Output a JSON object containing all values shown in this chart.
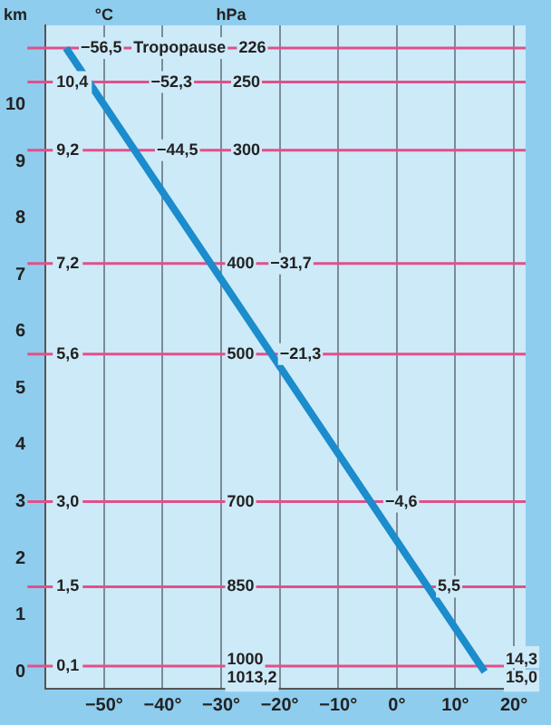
{
  "chart_data": {
    "type": "line",
    "xlabel": "°C",
    "ylabel": "km",
    "y2label": "hPa",
    "x": [
      15,
      -56.5
    ],
    "series": [
      {
        "color": "#1b8ccc",
        "values": [
          0,
          11
        ]
      }
    ],
    "xlim": [
      -60,
      22
    ],
    "ylim": [
      -0.3,
      11.4
    ],
    "xticks": [
      {
        "value": -50,
        "label": "−50°"
      },
      {
        "value": -40,
        "label": "−40°"
      },
      {
        "value": -30,
        "label": "−30°"
      },
      {
        "value": -20,
        "label": "−20°"
      },
      {
        "value": -10,
        "label": "−10°"
      },
      {
        "value": 0,
        "label": "0°"
      },
      {
        "value": 10,
        "label": "10°"
      },
      {
        "value": 20,
        "label": "20°"
      }
    ],
    "yticks": [
      0,
      1,
      2,
      3,
      4,
      5,
      6,
      7,
      8,
      9,
      10
    ],
    "grid": "x",
    "legend": false,
    "marker": "none",
    "line_style": "solid",
    "ref_lines": [
      {
        "axis": "y",
        "value": 11,
        "color": "#e0508a"
      },
      {
        "axis": "y",
        "value": 10.4,
        "label": "10,4",
        "color": "#e0508a"
      },
      {
        "axis": "y",
        "value": 9.2,
        "label": "9,2",
        "color": "#e0508a"
      },
      {
        "axis": "y",
        "value": 7.2,
        "label": "7,2",
        "color": "#e0508a"
      },
      {
        "axis": "y",
        "value": 5.6,
        "label": "5,6",
        "color": "#e0508a"
      },
      {
        "axis": "y",
        "value": 3.0,
        "label": "3,0",
        "color": "#e0508a"
      },
      {
        "axis": "y",
        "value": 1.5,
        "label": "1,5",
        "color": "#e0508a"
      },
      {
        "axis": "y",
        "value": 0.1,
        "label": "0,1",
        "color": "#e0508a"
      }
    ],
    "annotations": [
      {
        "text": "−56,5",
        "x": -54,
        "y": 11
      },
      {
        "text": "Tropopause",
        "x": -45,
        "y": 11
      },
      {
        "text": "226",
        "x": -27,
        "y": 11
      },
      {
        "text": "−52,3",
        "x": -42,
        "y": 10.4
      },
      {
        "text": "250",
        "x": -28,
        "y": 10.4
      },
      {
        "text": "−44,5",
        "x": -41,
        "y": 9.2
      },
      {
        "text": "300",
        "x": -28,
        "y": 9.2
      },
      {
        "text": "400",
        "x": -29,
        "y": 7.2
      },
      {
        "text": "−31,7",
        "x": -21.6,
        "y": 7.2
      },
      {
        "text": "500",
        "x": -29,
        "y": 5.6
      },
      {
        "text": "−21,3",
        "x": -20,
        "y": 5.6
      },
      {
        "text": "700",
        "x": -29,
        "y": 3.0
      },
      {
        "text": "−4,6",
        "x": -2,
        "y": 3.0
      },
      {
        "text": "850",
        "x": -29,
        "y": 1.5
      },
      {
        "text": "5,5",
        "x": 7,
        "y": 1.5
      },
      {
        "text": "1000",
        "x": -29,
        "y": 0.1
      },
      {
        "text": "1013,2",
        "x": -29,
        "y": 0
      },
      {
        "text": "14,3",
        "x": 18.6,
        "y": 0.1
      },
      {
        "text": "15,0",
        "x": 18.6,
        "y": 0
      }
    ]
  }
}
